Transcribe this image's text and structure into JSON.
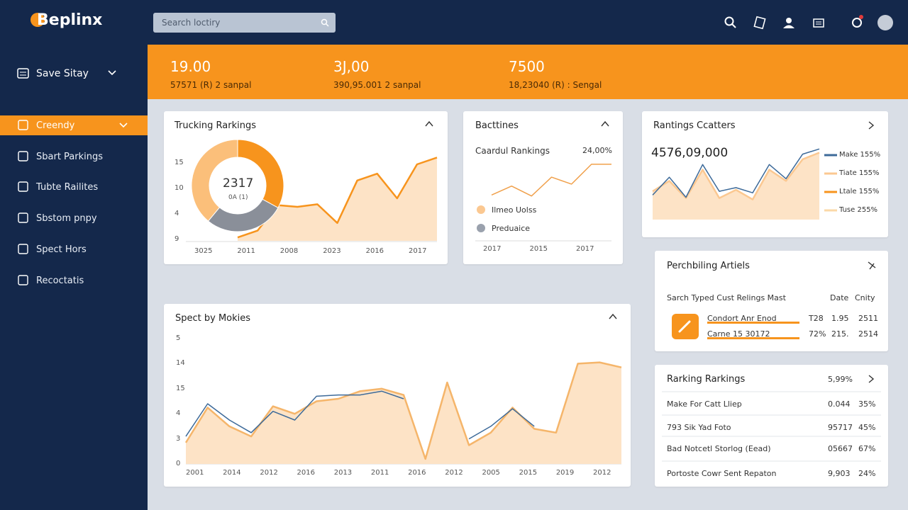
{
  "header": {
    "logo": "Beplinx",
    "search_placeholder": "Search loctiry"
  },
  "sidebar": {
    "workspace": "Save Sitay",
    "nav": [
      "Creendy",
      "Sbart Parkings",
      "Tubte Railites",
      "Sbstom pnpy",
      "Spect Hors",
      "Recoctatis"
    ]
  },
  "kpis": [
    {
      "value": "19.00",
      "detail": "57571 (R) 2 sanpal"
    },
    {
      "value": "3J,00",
      "detail": "390,95.001 2 sanpal"
    },
    {
      "value": "7500",
      "detail": "18,23040 (R) : Sengal"
    }
  ],
  "trucking": {
    "title": "Trucking Rarkings",
    "donut": {
      "center": "2317",
      "sub": "0A (1)",
      "values": [
        33,
        28,
        39
      ],
      "colors": [
        "#f7941d",
        "#8a8f99",
        "#fbbf7a"
      ]
    },
    "chart": {
      "type": "line",
      "ylim": [
        0,
        100
      ],
      "y_labels": [
        "15",
        "10",
        "4",
        "9"
      ],
      "x_labels": [
        "3025",
        "2011",
        "2008",
        "2023",
        "2016",
        "2017"
      ],
      "series": [
        {
          "color": "#f7941d",
          "fill": "#fde3c6",
          "values": [
            4,
            12,
            42,
            40,
            43,
            21,
            71,
            79,
            50,
            90,
            98
          ]
        }
      ]
    }
  },
  "bacttines": {
    "title": "Bacttines",
    "subtitle": "Caardul Rankings",
    "stat": "24,00%",
    "chart": {
      "type": "line",
      "ylim": [
        0,
        100
      ],
      "x_labels": [
        "2017",
        "2015",
        "2017"
      ],
      "series": [
        {
          "color": "#f0a04b",
          "values": [
            21,
            39,
            19,
            57,
            43,
            83,
            83
          ]
        }
      ]
    },
    "legend": [
      {
        "name": "Ilmeo Uolss",
        "color": "#fbc891"
      },
      {
        "name": "Preduaice",
        "color": "#9aa1ad"
      }
    ]
  },
  "scatters": {
    "title": "Rantings Ccatters",
    "stat": "4576,09,000",
    "chart": {
      "type": "line",
      "ylim": [
        0,
        100
      ],
      "series": [
        {
          "color": "#fbc891",
          "fill": "#fde3c6",
          "values": [
            38,
            52,
            29,
            67,
            29,
            40,
            27,
            67,
            52,
            81,
            90
          ]
        },
        {
          "color": "#3d6a99",
          "values": [
            33,
            57,
            30,
            74,
            38,
            43,
            36,
            74,
            55,
            88,
            95
          ]
        }
      ]
    },
    "legend": [
      {
        "name": "Make 155%",
        "color": "#3d6a99"
      },
      {
        "name": "Tiate 155%",
        "color": "#fbc891"
      },
      {
        "name": "Ltale 155%",
        "color": "#f7941d"
      },
      {
        "name": "Tuse 255%",
        "color": "#fbd9a8"
      }
    ]
  },
  "spect": {
    "title": "Spect by Mokies",
    "chart": {
      "type": "line",
      "ylim": [
        0,
        100
      ],
      "y_labels": [
        "5",
        "14",
        "15",
        "4",
        "3",
        "0"
      ],
      "x_labels": [
        "2001",
        "2014",
        "2012",
        "2016",
        "2013",
        "2011",
        "2016",
        "2012",
        "2005",
        "2015",
        "2019",
        "2012"
      ],
      "series": [
        {
          "color": "#f5b56a",
          "fill": "#fde3c6",
          "values": [
            17,
            45,
            30,
            22,
            46,
            40,
            50,
            52,
            58,
            60,
            55,
            4,
            65,
            15,
            25,
            45,
            28,
            25,
            80,
            81,
            77
          ]
        },
        {
          "color": "#3d6a99",
          "values": [
            22,
            48,
            35,
            25,
            42,
            35,
            54,
            55,
            55,
            58,
            52,
            null,
            null,
            20,
            30,
            44,
            30,
            null,
            null,
            null,
            null
          ]
        }
      ]
    }
  },
  "articles": {
    "title": "Perchbiling Artiels",
    "columns": [
      "Sarch Typed Cust Relings Mast",
      "Date",
      "Cnity"
    ],
    "rows": [
      [
        "Condort Anr Enod",
        "T28",
        "1.95",
        "2511"
      ],
      [
        "Carne 15 30172",
        "72%",
        "215.",
        "2514"
      ]
    ]
  },
  "rankings": {
    "title": "Rarking Rarkings",
    "stat": "5,99%",
    "rows": [
      [
        "Make For Catt Lliep",
        "0.044",
        "35%"
      ],
      [
        "793 Sik Yad Foto",
        "95717",
        "45%"
      ],
      [
        "Bad Notcetl Storlog (Eead)",
        "05667",
        "67%"
      ],
      [
        "Portoste Cowr Sent Repaton",
        "9,903",
        "24%"
      ]
    ]
  }
}
